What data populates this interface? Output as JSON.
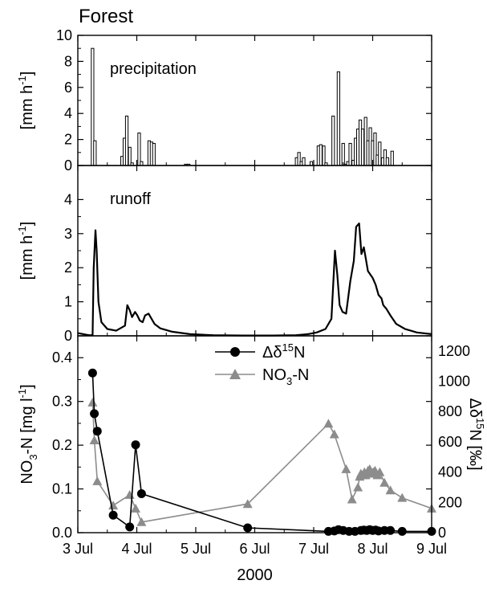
{
  "figure": {
    "title": "Forest",
    "xlabel": "2000",
    "x_ticks": [
      {
        "day": 3,
        "label": "3 Jul"
      },
      {
        "day": 4,
        "label": "4 Jul"
      },
      {
        "day": 5,
        "label": "5 Jul"
      },
      {
        "day": 6,
        "label": "6 Jul"
      },
      {
        "day": 7,
        "label": "7 Jul"
      },
      {
        "day": 8,
        "label": "8 Jul"
      },
      {
        "day": 9,
        "label": "9 Jul"
      }
    ]
  },
  "chart_data": [
    {
      "type": "bar",
      "title": "",
      "annotation": "precipitation",
      "ylabel": "[mm h-1]",
      "ylabel_parts": {
        "base": "[mm h",
        "sup": "-1",
        "end": "]"
      },
      "xlim": [
        "2000-07-03",
        "2000-07-09"
      ],
      "ylim": [
        0,
        10
      ],
      "yticks": [
        0,
        2,
        4,
        6,
        8,
        10
      ],
      "x_unit": "day of July 2000",
      "x": [
        3.25,
        3.29,
        3.75,
        3.79,
        3.83,
        3.88,
        3.92,
        4.04,
        4.08,
        4.21,
        4.25,
        4.29,
        4.83,
        4.88,
        6.71,
        6.75,
        6.79,
        6.83,
        6.96,
        7.08,
        7.12,
        7.17,
        7.21,
        7.33,
        7.42,
        7.5,
        7.54,
        7.58,
        7.62,
        7.67,
        7.71,
        7.75,
        7.79,
        7.83,
        7.88,
        7.92,
        7.96,
        8.0,
        8.04,
        8.08,
        8.12,
        8.17,
        8.21,
        8.25,
        8.33
      ],
      "values": [
        9.0,
        1.9,
        0.7,
        2.1,
        3.8,
        1.4,
        0.2,
        2.5,
        0.3,
        1.9,
        1.8,
        1.7,
        0.1,
        0.1,
        0.6,
        1.0,
        0.3,
        0.6,
        0.3,
        1.5,
        1.6,
        1.5,
        0.2,
        3.8,
        7.2,
        1.7,
        0.1,
        0.3,
        1.7,
        0.4,
        2.1,
        2.8,
        3.5,
        2.8,
        3.7,
        1.9,
        2.9,
        1.9,
        2.5,
        0.8,
        1.8,
        0.6,
        1.2,
        0.6,
        1.1
      ]
    },
    {
      "type": "line",
      "title": "",
      "annotation": "runoff",
      "ylabel": "[mm h-1]",
      "ylabel_parts": {
        "base": "[mm h",
        "sup": "-1",
        "end": "]"
      },
      "xlim": [
        "2000-07-03",
        "2000-07-09"
      ],
      "ylim": [
        0,
        5
      ],
      "yticks": [
        0,
        1,
        2,
        3,
        4
      ],
      "x_unit": "day of July 2000",
      "x": [
        3.0,
        3.15,
        3.2,
        3.25,
        3.27,
        3.3,
        3.32,
        3.35,
        3.4,
        3.5,
        3.65,
        3.8,
        3.84,
        3.88,
        3.92,
        3.97,
        4.01,
        4.05,
        4.1,
        4.14,
        4.2,
        4.25,
        4.3,
        4.4,
        4.6,
        4.9,
        5.3,
        5.8,
        6.3,
        6.7,
        6.9,
        7.05,
        7.2,
        7.3,
        7.36,
        7.4,
        7.44,
        7.49,
        7.55,
        7.62,
        7.68,
        7.72,
        7.77,
        7.81,
        7.85,
        7.88,
        7.92,
        7.96,
        8.0,
        8.05,
        8.1,
        8.15,
        8.18,
        8.23,
        8.3,
        8.4,
        8.55,
        8.75,
        9.0
      ],
      "values": [
        0.08,
        0.03,
        0.02,
        0.02,
        2.0,
        3.1,
        2.5,
        1.0,
        0.4,
        0.2,
        0.15,
        0.3,
        0.9,
        0.75,
        0.55,
        0.7,
        0.6,
        0.45,
        0.4,
        0.6,
        0.65,
        0.5,
        0.35,
        0.22,
        0.12,
        0.05,
        0.02,
        0.01,
        0.01,
        0.02,
        0.05,
        0.1,
        0.2,
        0.5,
        2.5,
        1.8,
        0.9,
        0.7,
        0.65,
        1.6,
        2.2,
        3.2,
        3.3,
        2.4,
        2.6,
        2.3,
        1.9,
        1.8,
        1.7,
        1.5,
        1.2,
        1.1,
        0.9,
        0.8,
        0.6,
        0.35,
        0.2,
        0.1,
        0.05
      ]
    },
    {
      "type": "scatter",
      "title": "",
      "ylabel": "NO3-N [mg l-1]",
      "ylabel_parts": {
        "a": "NO",
        "sub": "3",
        "b": "-N [mg l",
        "sup": "-1",
        "c": "]"
      },
      "y2label": "Δδ15N [‰]",
      "y2label_parts": {
        "a": "Δδ",
        "sup": "15",
        "b": "N [‰]"
      },
      "xlim": [
        "2000-07-03",
        "2000-07-09"
      ],
      "ylim": [
        0,
        0.45
      ],
      "y2lim": [
        0,
        1300
      ],
      "yticks": [
        0.0,
        0.1,
        0.2,
        0.3,
        0.4
      ],
      "ytick_labels": [
        "0.0",
        "0.1",
        "0.2",
        "0.3",
        "0.4"
      ],
      "y2ticks": [
        0,
        200,
        400,
        600,
        800,
        1000,
        1200
      ],
      "x_unit": "day of July 2000",
      "legend_position": "top-center",
      "series": [
        {
          "name": "Δδ15N",
          "label_parts": {
            "a": "Δδ",
            "sup": "15",
            "b": "N"
          },
          "axis": "left",
          "color": "#000000",
          "marker": "circle",
          "x": [
            3.25,
            3.28,
            3.33,
            3.6,
            3.88,
            3.98,
            4.08,
            5.88,
            7.25,
            7.35,
            7.42,
            7.5,
            7.6,
            7.7,
            7.8,
            7.85,
            7.9,
            7.95,
            8.0,
            8.05,
            8.1,
            8.2,
            8.3,
            8.5,
            9.0
          ],
          "values": [
            0.365,
            0.272,
            0.232,
            0.04,
            0.013,
            0.201,
            0.089,
            0.011,
            0.003,
            0.004,
            0.007,
            0.005,
            0.003,
            0.003,
            0.005,
            0.006,
            0.005,
            0.007,
            0.005,
            0.006,
            0.004,
            0.005,
            0.005,
            0.003,
            0.003
          ]
        },
        {
          "name": "NO3-N",
          "label_parts": {
            "a": "NO",
            "sub": "3",
            "b": "-N"
          },
          "axis": "right",
          "color": "#8c8c8c",
          "marker": "triangle",
          "x": [
            3.25,
            3.28,
            3.33,
            3.6,
            3.88,
            3.98,
            4.08,
            5.88,
            7.25,
            7.35,
            7.55,
            7.65,
            7.75,
            7.78,
            7.8,
            7.83,
            7.86,
            7.88,
            7.92,
            7.95,
            7.98,
            8.01,
            8.04,
            8.08,
            8.12,
            8.2,
            8.3,
            8.5,
            9.0
          ],
          "values": [
            860,
            610,
            340,
            180,
            250,
            160,
            70,
            190,
            720,
            650,
            420,
            220,
            300,
            370,
            390,
            380,
            400,
            380,
            410,
            420,
            390,
            400,
            410,
            380,
            400,
            330,
            280,
            230,
            160
          ]
        }
      ]
    }
  ]
}
